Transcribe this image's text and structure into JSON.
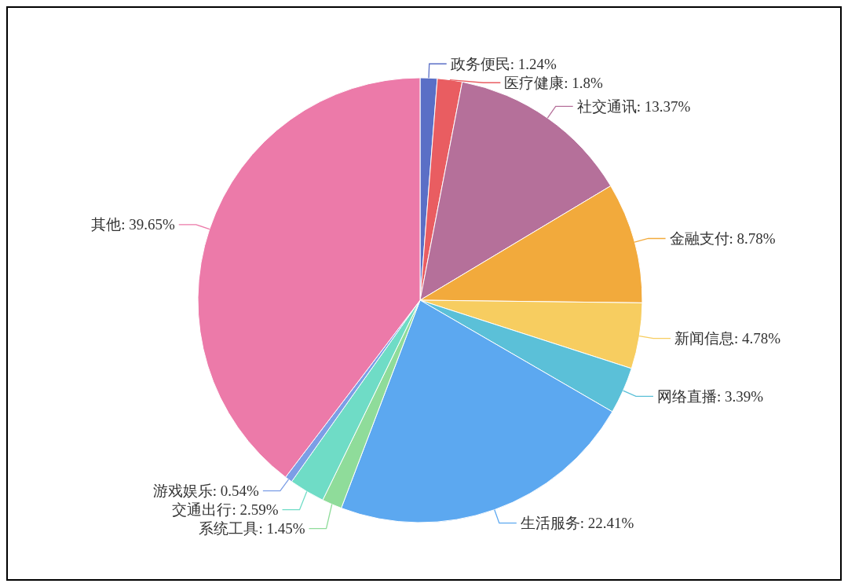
{
  "chart_data": {
    "type": "pie",
    "categories": [
      "政务便民",
      "医疗健康",
      "社交通讯",
      "金融支付",
      "新闻信息",
      "网络直播",
      "生活服务",
      "系统工具",
      "交通出行",
      "游戏娱乐",
      "其他"
    ],
    "values": [
      1.24,
      1.8,
      13.37,
      8.78,
      4.78,
      3.39,
      22.41,
      1.45,
      2.59,
      0.54,
      39.65
    ],
    "value_labels": [
      "1.24%",
      "1.8%",
      "13.37%",
      "8.78%",
      "4.78%",
      "3.39%",
      "22.41%",
      "1.45%",
      "2.59%",
      "0.54%",
      "39.65%"
    ],
    "colors": [
      "#5a6fc6",
      "#e95d61",
      "#b5709a",
      "#f2aa3c",
      "#f7cd60",
      "#5bc0d8",
      "#5ca8f0",
      "#8fdc9a",
      "#6fdcc6",
      "#7c9ee6",
      "#ec7aa9"
    ]
  }
}
